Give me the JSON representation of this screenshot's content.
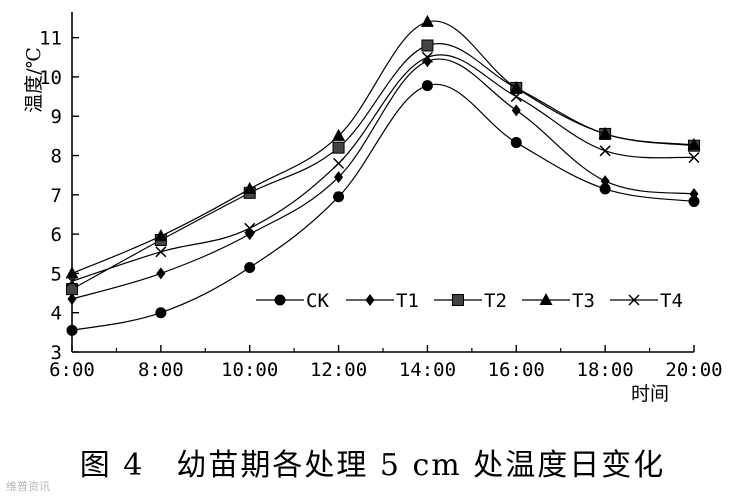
{
  "caption": "图 4　幼苗期各处理 5 cm 处温度日变化",
  "watermark": "维普资讯",
  "chart_data": {
    "type": "line",
    "xlabel": "时间",
    "ylabel": "温度/℃",
    "categories": [
      "6:00",
      "8:00",
      "10:00",
      "12:00",
      "14:00",
      "16:00",
      "18:00",
      "20:00"
    ],
    "ylim": [
      3,
      11.5
    ],
    "yticks": [
      3,
      4,
      5,
      6,
      7,
      8,
      9,
      10,
      11
    ],
    "grid": false,
    "legend_position": "inside-bottom-right",
    "series": [
      {
        "name": "CK",
        "marker": "circle",
        "values": [
          3.55,
          4.0,
          5.15,
          6.95,
          9.78,
          8.33,
          7.15,
          6.83
        ]
      },
      {
        "name": "T1",
        "marker": "diamond",
        "values": [
          4.35,
          5.0,
          6.0,
          7.45,
          10.4,
          9.15,
          7.35,
          7.02
        ]
      },
      {
        "name": "T2",
        "marker": "square",
        "values": [
          4.6,
          5.85,
          7.05,
          8.2,
          10.8,
          9.72,
          8.55,
          8.25
        ]
      },
      {
        "name": "T3",
        "marker": "triangle",
        "values": [
          5.0,
          5.95,
          7.15,
          8.5,
          11.4,
          9.72,
          8.55,
          8.27
        ]
      },
      {
        "name": "T4",
        "marker": "cross",
        "values": [
          4.8,
          5.55,
          6.15,
          7.8,
          10.5,
          9.5,
          8.12,
          7.95
        ]
      }
    ]
  }
}
